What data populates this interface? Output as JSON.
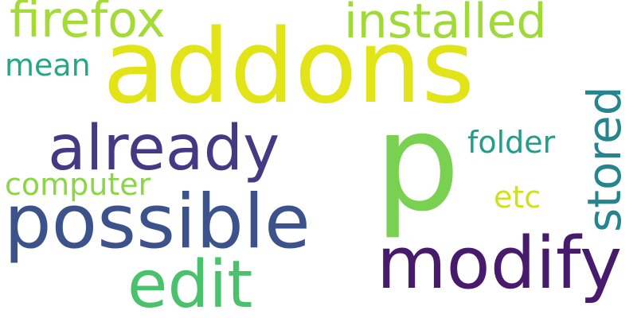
{
  "cloud": {
    "words": [
      {
        "text": "addons",
        "color": "#e2e418"
      },
      {
        "text": "p",
        "color": "#7ad151"
      },
      {
        "text": "possible",
        "color": "#3b528b"
      },
      {
        "text": "already",
        "color": "#443983"
      },
      {
        "text": "modify",
        "color": "#481a6c"
      },
      {
        "text": "edit",
        "color": "#4ac16d"
      },
      {
        "text": "installed",
        "color": "#a0da39"
      },
      {
        "text": "firefox",
        "color": "#a5db36"
      },
      {
        "text": "stored",
        "color": "#25858e"
      },
      {
        "text": "folder",
        "color": "#1f9e89"
      },
      {
        "text": "computer",
        "color": "#8bd646"
      },
      {
        "text": "mean",
        "color": "#26a784"
      },
      {
        "text": "etc",
        "color": "#d0e11c"
      }
    ]
  }
}
